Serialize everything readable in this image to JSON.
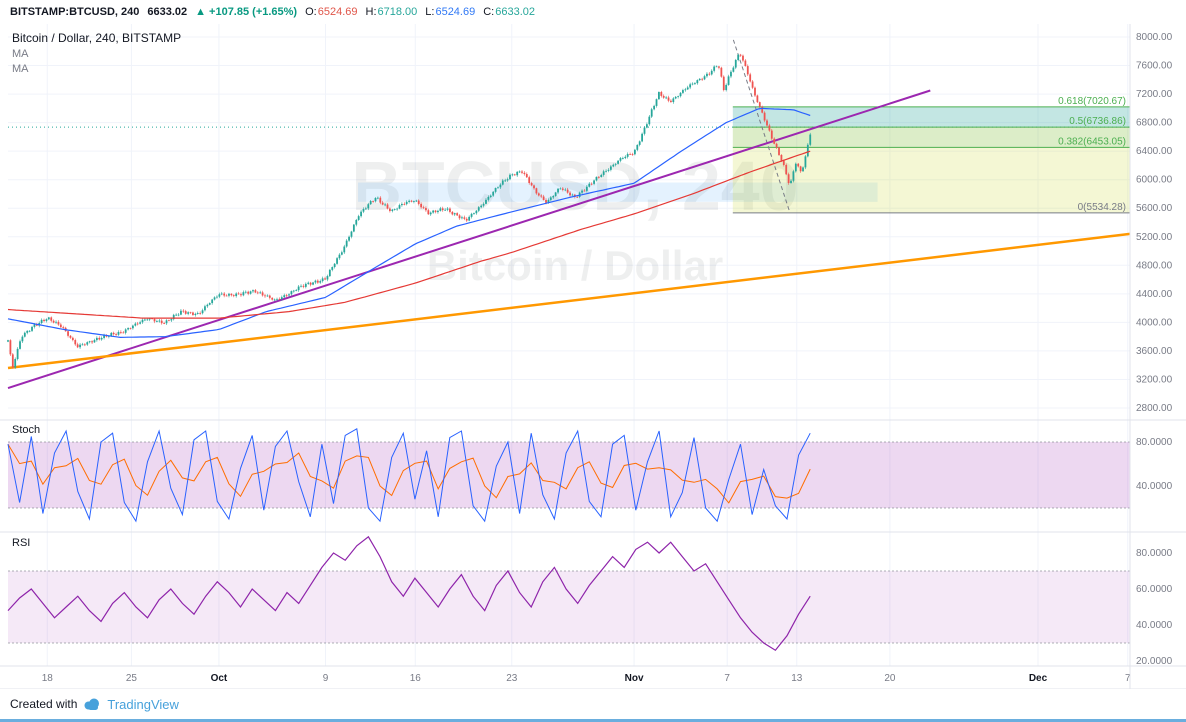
{
  "topbar": {
    "symbol": "BITSTAMP:BTCUSD, 240",
    "last_price": "6633.02",
    "change_arrow": "▲",
    "change_text": "+107.85 (+1.65%)",
    "ohlc": [
      {
        "key": "open",
        "label": "O:",
        "value": "6524.69",
        "color": "#e0564a"
      },
      {
        "key": "high",
        "label": "H:",
        "value": "6718.00",
        "color": "#26a69a"
      },
      {
        "key": "low",
        "label": "L:",
        "value": "6524.69",
        "color": "#3179f5"
      },
      {
        "key": "close",
        "label": "C:",
        "value": "6633.02",
        "color": "#26a69a"
      }
    ]
  },
  "legend": {
    "title": "Bitcoin / Dollar, 240, BITSTAMP",
    "indicators": [
      "MA",
      "MA"
    ]
  },
  "watermark": {
    "line1": "BTCUSD, 240",
    "line2": "Bitcoin / Dollar"
  },
  "panels": {
    "stoch_label": "Stoch",
    "rsi_label": "RSI"
  },
  "footer": {
    "created_with": "Created with",
    "brand": "TradingView"
  },
  "chart_data": {
    "type": "candlestick",
    "title": "Bitcoin / Dollar, 240, BITSTAMP",
    "symbol": "BTCUSD",
    "interval": "240",
    "exchange": "BITSTAMP",
    "colors": {
      "up": "#26a69a",
      "down": "#ef5350",
      "ma_fast": "#2962ff",
      "ma_slow": "#e53935",
      "grid": "#f0f3fa",
      "axis_text": "#787b86",
      "stoch_k": "#2962ff",
      "stoch_d": "#ff6d00",
      "rsi": "#8e24aa"
    },
    "y_axis": {
      "ticks": [
        {
          "v": 8000,
          "label": "8000.00"
        },
        {
          "v": 7600,
          "label": "7600.00"
        },
        {
          "v": 7200,
          "label": "7200.00"
        },
        {
          "v": 6800,
          "label": "6800.00"
        },
        {
          "v": 6400,
          "label": "6400.00"
        },
        {
          "v": 6000,
          "label": "6000.00"
        },
        {
          "v": 5600,
          "label": "5600.00"
        },
        {
          "v": 5200,
          "label": "5200.00"
        },
        {
          "v": 4800,
          "label": "4800.00"
        },
        {
          "v": 4400,
          "label": "4400.00"
        },
        {
          "v": 4000,
          "label": "4000.00"
        },
        {
          "v": 3600,
          "label": "3600.00"
        },
        {
          "v": 3200,
          "label": "3200.00"
        },
        {
          "v": 2800,
          "label": "2800.00"
        }
      ]
    },
    "x_axis": {
      "ticks": [
        {
          "label": "18",
          "t": 0.035,
          "month": false
        },
        {
          "label": "25",
          "t": 0.11,
          "month": false
        },
        {
          "label": "Oct",
          "t": 0.188,
          "month": true
        },
        {
          "label": "9",
          "t": 0.283,
          "month": false
        },
        {
          "label": "16",
          "t": 0.363,
          "month": false
        },
        {
          "label": "23",
          "t": 0.449,
          "month": false
        },
        {
          "label": "Nov",
          "t": 0.558,
          "month": true
        },
        {
          "label": "7",
          "t": 0.641,
          "month": false
        },
        {
          "label": "13",
          "t": 0.703,
          "month": false
        },
        {
          "label": "20",
          "t": 0.786,
          "month": false
        },
        {
          "label": "Dec",
          "t": 0.918,
          "month": true
        },
        {
          "label": "7",
          "t": 0.998,
          "month": false
        }
      ]
    },
    "data_end_t": 0.715,
    "candle_count": 335,
    "noise_amp": 34,
    "price_path": [
      [
        0.0,
        3750
      ],
      [
        0.004,
        3350
      ],
      [
        0.012,
        3800
      ],
      [
        0.022,
        3950
      ],
      [
        0.035,
        4050
      ],
      [
        0.048,
        3950
      ],
      [
        0.062,
        3650
      ],
      [
        0.08,
        3780
      ],
      [
        0.1,
        3850
      ],
      [
        0.11,
        3950
      ],
      [
        0.125,
        4050
      ],
      [
        0.14,
        4000
      ],
      [
        0.155,
        4150
      ],
      [
        0.17,
        4120
      ],
      [
        0.188,
        4400
      ],
      [
        0.205,
        4380
      ],
      [
        0.22,
        4450
      ],
      [
        0.238,
        4300
      ],
      [
        0.258,
        4480
      ],
      [
        0.283,
        4620
      ],
      [
        0.298,
        5000
      ],
      [
        0.312,
        5500
      ],
      [
        0.328,
        5750
      ],
      [
        0.342,
        5560
      ],
      [
        0.355,
        5680
      ],
      [
        0.363,
        5720
      ],
      [
        0.375,
        5520
      ],
      [
        0.39,
        5600
      ],
      [
        0.408,
        5420
      ],
      [
        0.425,
        5700
      ],
      [
        0.44,
        5950
      ],
      [
        0.449,
        6080
      ],
      [
        0.458,
        6120
      ],
      [
        0.47,
        5830
      ],
      [
        0.48,
        5690
      ],
      [
        0.492,
        5880
      ],
      [
        0.505,
        5760
      ],
      [
        0.518,
        5920
      ],
      [
        0.532,
        6120
      ],
      [
        0.545,
        6280
      ],
      [
        0.558,
        6380
      ],
      [
        0.568,
        6750
      ],
      [
        0.58,
        7200
      ],
      [
        0.59,
        7100
      ],
      [
        0.602,
        7250
      ],
      [
        0.614,
        7380
      ],
      [
        0.625,
        7500
      ],
      [
        0.633,
        7620
      ],
      [
        0.638,
        7250
      ],
      [
        0.644,
        7500
      ],
      [
        0.652,
        7800
      ],
      [
        0.658,
        7550
      ],
      [
        0.665,
        7200
      ],
      [
        0.673,
        6900
      ],
      [
        0.682,
        6550
      ],
      [
        0.69,
        6250
      ],
      [
        0.697,
        5900
      ],
      [
        0.702,
        6250
      ],
      [
        0.707,
        6100
      ],
      [
        0.711,
        6350
      ],
      [
        0.715,
        6633
      ]
    ],
    "ma_fast": [
      [
        0,
        4050
      ],
      [
        0.05,
        3900
      ],
      [
        0.1,
        3790
      ],
      [
        0.14,
        3800
      ],
      [
        0.188,
        3900
      ],
      [
        0.23,
        4150
      ],
      [
        0.283,
        4350
      ],
      [
        0.32,
        4700
      ],
      [
        0.363,
        5100
      ],
      [
        0.4,
        5350
      ],
      [
        0.449,
        5550
      ],
      [
        0.5,
        5750
      ],
      [
        0.558,
        5950
      ],
      [
        0.6,
        6400
      ],
      [
        0.64,
        6800
      ],
      [
        0.67,
        7000
      ],
      [
        0.7,
        6980
      ],
      [
        0.715,
        6900
      ]
    ],
    "ma_slow": [
      [
        0,
        4180
      ],
      [
        0.06,
        4120
      ],
      [
        0.12,
        4060
      ],
      [
        0.188,
        4060
      ],
      [
        0.25,
        4150
      ],
      [
        0.3,
        4280
      ],
      [
        0.363,
        4550
      ],
      [
        0.42,
        4850
      ],
      [
        0.449,
        4980
      ],
      [
        0.51,
        5300
      ],
      [
        0.558,
        5520
      ],
      [
        0.61,
        5800
      ],
      [
        0.66,
        6100
      ],
      [
        0.7,
        6320
      ],
      [
        0.715,
        6400
      ]
    ],
    "trendlines": [
      {
        "name": "purple",
        "color": "#9c27b0",
        "width": 2,
        "from": [
          0,
          3080
        ],
        "to": [
          0.822,
          7250
        ]
      },
      {
        "name": "orange",
        "color": "#ff9800",
        "width": 2.5,
        "from": [
          0,
          3360
        ],
        "to": [
          1.0,
          5240
        ]
      }
    ],
    "fib": {
      "start_t": 0.646,
      "trend_from": [
        0.6465,
        7960
      ],
      "trend_to": [
        0.697,
        5534.28
      ],
      "extended_level": 6736.86,
      "levels": [
        {
          "label": "0.618(7020.67)",
          "value": 7020.67,
          "color": "#4caf50"
        },
        {
          "label": "0.5(6736.86)",
          "value": 6736.86,
          "color": "#4caf50"
        },
        {
          "label": "0.382(6453.05)",
          "value": 6453.05,
          "color": "#4caf50"
        },
        {
          "label": "0(5534.28)",
          "value": 5534.28,
          "color": "#787b86"
        }
      ],
      "bands": [
        {
          "from": 7020.67,
          "to": 6736.86,
          "fill": "rgba(38,166,154,0.28)"
        },
        {
          "from": 6736.86,
          "to": 6453.05,
          "fill": "rgba(139,195,74,0.30)"
        },
        {
          "from": 6453.05,
          "to": 5534.28,
          "fill": "rgba(205,220,57,0.22)"
        }
      ]
    },
    "zone": {
      "t0": 0.312,
      "t1": 0.775,
      "p0": 5960,
      "p1": 5690,
      "fill": "rgba(33,150,243,0.12)"
    },
    "stoch": {
      "upper": 80,
      "lower": 20,
      "fill": "rgba(156,39,176,0.18)",
      "ticks": [
        {
          "v": 80,
          "label": "80.0000"
        },
        {
          "v": 40,
          "label": "40.0000"
        }
      ],
      "k": [
        78,
        25,
        85,
        15,
        70,
        90,
        35,
        10,
        80,
        88,
        25,
        8,
        62,
        90,
        38,
        14,
        82,
        90,
        26,
        10,
        56,
        86,
        18,
        76,
        90,
        44,
        12,
        78,
        24,
        86,
        92,
        20,
        8,
        66,
        88,
        28,
        72,
        12,
        84,
        90,
        22,
        8,
        58,
        80,
        15,
        88,
        32,
        10,
        70,
        90,
        26,
        12,
        78,
        86,
        18,
        62,
        90,
        12,
        34,
        84,
        20,
        8,
        46,
        78,
        14,
        55,
        22,
        10,
        68,
        88
      ]
    },
    "rsi": {
      "upper": 70,
      "lower": 30,
      "fill": "rgba(156,39,176,0.10)",
      "ticks": [
        {
          "v": 80,
          "label": "80.0000"
        },
        {
          "v": 60,
          "label": "60.0000"
        },
        {
          "v": 40,
          "label": "40.0000"
        },
        {
          "v": 20,
          "label": "20.0000"
        }
      ],
      "values": [
        48,
        55,
        60,
        52,
        44,
        50,
        56,
        48,
        42,
        52,
        58,
        50,
        44,
        54,
        60,
        52,
        46,
        56,
        64,
        58,
        50,
        60,
        54,
        48,
        58,
        52,
        62,
        72,
        80,
        76,
        84,
        89,
        78,
        64,
        56,
        66,
        58,
        50,
        60,
        68,
        56,
        48,
        62,
        70,
        58,
        50,
        64,
        72,
        60,
        52,
        62,
        70,
        78,
        72,
        82,
        86,
        80,
        86,
        78,
        70,
        74,
        64,
        54,
        44,
        36,
        30,
        26,
        34,
        46,
        56
      ]
    }
  }
}
